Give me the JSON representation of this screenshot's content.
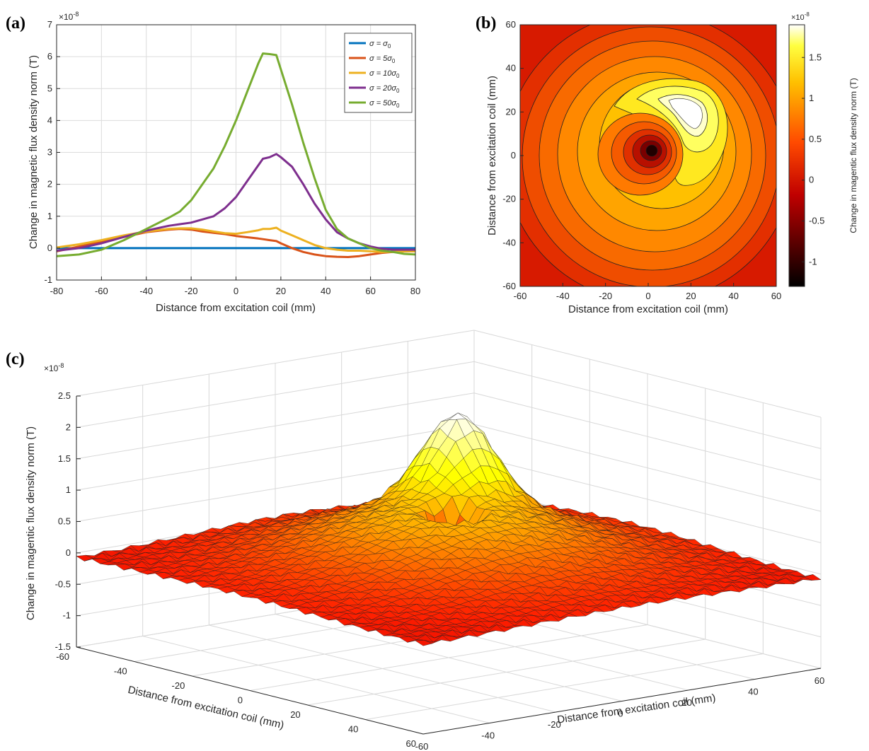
{
  "panels": {
    "a": {
      "label": "(a)"
    },
    "b": {
      "label": "(b)"
    },
    "c": {
      "label": "(c)"
    }
  },
  "chart_data": [
    {
      "type": "line",
      "panel": "a",
      "ylabel": "Change in magnetic flux density norm (T)",
      "xlabel": "Distance from excitation coil (mm)",
      "yexponent": "×10",
      "yexponent_power": "-8",
      "xlim": [
        -80,
        80
      ],
      "ylim": [
        -1,
        7
      ],
      "xticks": [
        "-80",
        "-60",
        "-40",
        "-20",
        "0",
        "20",
        "40",
        "60",
        "80"
      ],
      "yticks": [
        "-1",
        "0",
        "1",
        "2",
        "3",
        "4",
        "5",
        "6",
        "7"
      ],
      "grid": true,
      "legend_position": "top-right",
      "x": [
        -80,
        -70,
        -60,
        -50,
        -40,
        -30,
        -25,
        -20,
        -15,
        -10,
        -5,
        0,
        5,
        10,
        12,
        15,
        18,
        20,
        25,
        30,
        35,
        40,
        45,
        50,
        55,
        60,
        65,
        70,
        75,
        80
      ],
      "series": [
        {
          "name": "σ = σ",
          "sub": "0",
          "color": "#0072BD",
          "values": [
            0,
            0,
            0,
            0,
            0,
            0,
            0,
            0,
            0,
            0,
            0,
            0,
            0,
            0,
            0,
            0,
            0,
            0,
            0,
            0,
            0,
            0,
            0,
            0,
            0,
            0,
            0,
            0,
            0,
            0
          ]
        },
        {
          "name": "σ = 5σ",
          "sub": "0",
          "color": "#D95319",
          "values": [
            -0.1,
            0.05,
            0.2,
            0.35,
            0.5,
            0.58,
            0.6,
            0.58,
            0.52,
            0.48,
            0.44,
            0.38,
            0.34,
            0.3,
            0.28,
            0.25,
            0.22,
            0.15,
            0.0,
            -0.12,
            -0.2,
            -0.25,
            -0.27,
            -0.28,
            -0.25,
            -0.2,
            -0.15,
            -0.12,
            -0.1,
            -0.1
          ]
        },
        {
          "name": "σ = 10σ",
          "sub": "0",
          "color": "#EDB120",
          "values": [
            0.02,
            0.12,
            0.25,
            0.4,
            0.52,
            0.6,
            0.62,
            0.62,
            0.58,
            0.52,
            0.47,
            0.45,
            0.5,
            0.56,
            0.6,
            0.6,
            0.64,
            0.55,
            0.4,
            0.25,
            0.1,
            0.0,
            -0.05,
            -0.08,
            -0.08,
            -0.1,
            -0.12,
            -0.12,
            -0.1,
            -0.1
          ]
        },
        {
          "name": "σ = 20σ",
          "sub": "0",
          "color": "#7E2F8E",
          "values": [
            -0.08,
            0.0,
            0.15,
            0.35,
            0.55,
            0.7,
            0.75,
            0.8,
            0.9,
            1.0,
            1.25,
            1.6,
            2.1,
            2.6,
            2.8,
            2.85,
            2.95,
            2.85,
            2.55,
            2.0,
            1.4,
            0.9,
            0.5,
            0.3,
            0.15,
            0.05,
            -0.02,
            -0.05,
            -0.05,
            -0.05
          ]
        },
        {
          "name": "σ = 50σ",
          "sub": "0",
          "color": "#77AC30",
          "values": [
            -0.25,
            -0.2,
            -0.05,
            0.25,
            0.6,
            0.95,
            1.15,
            1.5,
            2.0,
            2.5,
            3.2,
            4.0,
            4.9,
            5.8,
            6.1,
            6.08,
            6.05,
            5.6,
            4.5,
            3.3,
            2.2,
            1.2,
            0.6,
            0.3,
            0.15,
            0.0,
            -0.08,
            -0.12,
            -0.18,
            -0.2
          ]
        }
      ]
    },
    {
      "type": "heatmap",
      "panel": "b",
      "xlabel": "Distance from excitation coil (mm)",
      "ylabel": "Distance from excitation coil (mm)",
      "xlim": [
        -60,
        60
      ],
      "ylim": [
        -60,
        60
      ],
      "xticks": [
        "-60",
        "-40",
        "-20",
        "0",
        "20",
        "40",
        "60"
      ],
      "yticks": [
        "-60",
        "-40",
        "-20",
        "0",
        "20",
        "40",
        "60"
      ],
      "colorbar": {
        "label": "Change in magentic flux density norm (T)",
        "exponent": "×10",
        "exponent_power": "-8",
        "range": [
          -1.3,
          1.9
        ],
        "ticks": [
          "-1",
          "-0.5",
          "0",
          "0.5",
          "1",
          "1.5"
        ],
        "colormap": "hot"
      },
      "features": {
        "minimum": {
          "x": 2,
          "y": 3,
          "value": -1.3
        },
        "maximum": {
          "x": 22,
          "y": 22,
          "value": 1.9
        }
      }
    },
    {
      "type": "surface",
      "panel": "c",
      "zlabel": "Change in magentic flux density norm (T)",
      "xlabel": "Distance from excitation coil (mm)",
      "ylabel": "Distance from excitation coil (mm)",
      "zexponent": "×10",
      "zexponent_power": "-8",
      "zlim": [
        -1.5,
        2.5
      ],
      "zticks": [
        "-1.5",
        "-1",
        "-0.5",
        "0",
        "0.5",
        "1",
        "1.5",
        "2",
        "2.5"
      ],
      "xticks": [
        "-60",
        "-40",
        "-20",
        "0",
        "20",
        "40",
        "60"
      ],
      "yticks": [
        "60",
        "40",
        "20",
        "0",
        "-20",
        "-40",
        "-60"
      ],
      "colormap": "hot",
      "features": {
        "peak": {
          "x": 22,
          "y": 22,
          "value": 2.0
        },
        "dip": {
          "x": 2,
          "y": 3,
          "value": -1.3
        }
      }
    }
  ]
}
